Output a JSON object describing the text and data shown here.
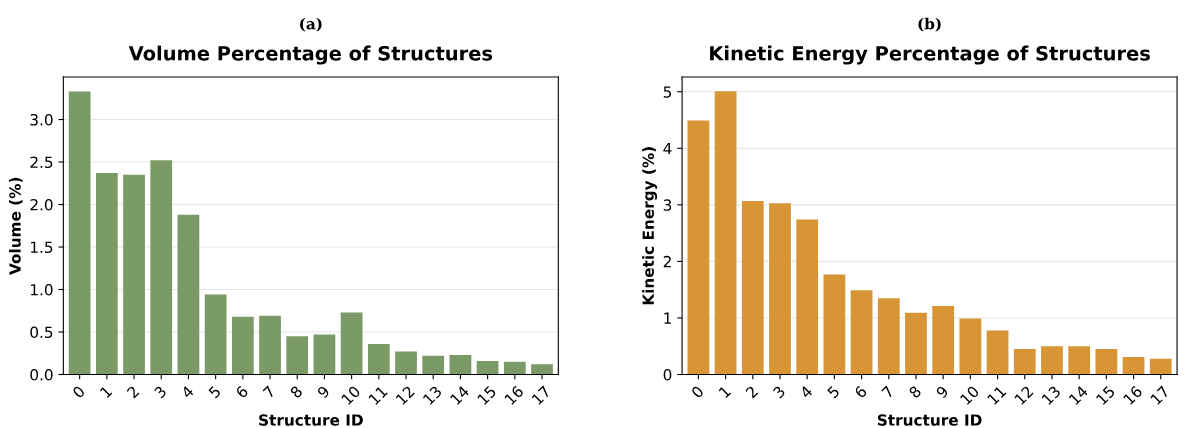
{
  "chart_data": [
    {
      "type": "bar",
      "title": "Volume Percentage of Structures",
      "xlabel": "Structure ID",
      "ylabel": "Volume (%)",
      "annotations": [
        "(a)"
      ],
      "categories": [
        "0",
        "1",
        "2",
        "3",
        "4",
        "5",
        "6",
        "7",
        "8",
        "9",
        "10",
        "11",
        "12",
        "13",
        "14",
        "15",
        "16",
        "17"
      ],
      "values": [
        3.33,
        2.37,
        2.35,
        2.52,
        1.88,
        0.94,
        0.68,
        0.69,
        0.45,
        0.47,
        0.73,
        0.36,
        0.27,
        0.22,
        0.23,
        0.16,
        0.15,
        0.12
      ],
      "color": "#7a9a66",
      "ylim": [
        0,
        3.5
      ],
      "yticks": [
        {
          "value": 0,
          "label": "0.0"
        },
        {
          "value": 0.5,
          "label": "0.5"
        },
        {
          "value": 1,
          "label": "1.0"
        },
        {
          "value": 1.5,
          "label": "1.5"
        },
        {
          "value": 2,
          "label": "2.0"
        },
        {
          "value": 2.5,
          "label": "2.5"
        },
        {
          "value": 3,
          "label": "3.0"
        }
      ],
      "grid": "y"
    },
    {
      "type": "bar",
      "title": "Kinetic Energy Percentage of Structures",
      "xlabel": "Structure ID",
      "ylabel": "Kinetic Energy (%)",
      "annotations": [
        "(b)"
      ],
      "categories": [
        "0",
        "1",
        "2",
        "3",
        "4",
        "5",
        "6",
        "7",
        "8",
        "9",
        "10",
        "11",
        "12",
        "13",
        "14",
        "15",
        "16",
        "17"
      ],
      "values": [
        4.49,
        5.01,
        3.07,
        3.03,
        2.74,
        1.77,
        1.49,
        1.35,
        1.09,
        1.21,
        0.99,
        0.78,
        0.45,
        0.5,
        0.5,
        0.45,
        0.31,
        0.28
      ],
      "color": "#d79535",
      "ylim": [
        0,
        5.26
      ],
      "yticks": [
        0,
        1,
        2,
        3,
        4,
        5
      ],
      "grid": "y"
    }
  ]
}
